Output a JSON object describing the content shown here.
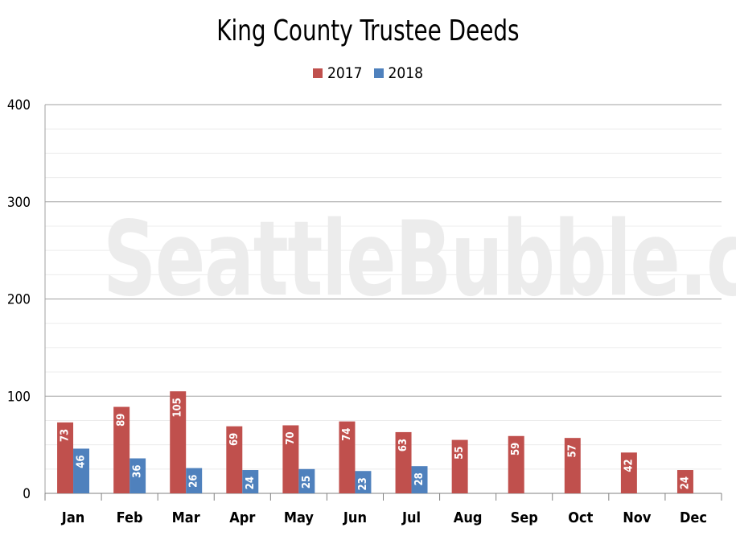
{
  "chart_data": {
    "type": "bar",
    "title": "King County Trustee Deeds",
    "categories": [
      "Jan",
      "Feb",
      "Mar",
      "Apr",
      "May",
      "Jun",
      "Jul",
      "Aug",
      "Sep",
      "Oct",
      "Nov",
      "Dec"
    ],
    "series": [
      {
        "name": "2017",
        "color": "#c0504d",
        "values": [
          73,
          89,
          105,
          69,
          70,
          74,
          63,
          55,
          59,
          57,
          42,
          24
        ]
      },
      {
        "name": "2018",
        "color": "#4f81bd",
        "values": [
          46,
          36,
          26,
          24,
          25,
          23,
          28,
          null,
          null,
          null,
          null,
          null
        ]
      }
    ],
    "ylim": [
      0,
      400
    ],
    "yticks": [
      0,
      100,
      200,
      300,
      400
    ],
    "ytick_labels": [
      "0",
      "100",
      "200",
      "300",
      "400"
    ],
    "xlabel": "",
    "ylabel": "",
    "grid": true,
    "legend_position": "top-center",
    "watermark": "SeattleBubble.com"
  }
}
